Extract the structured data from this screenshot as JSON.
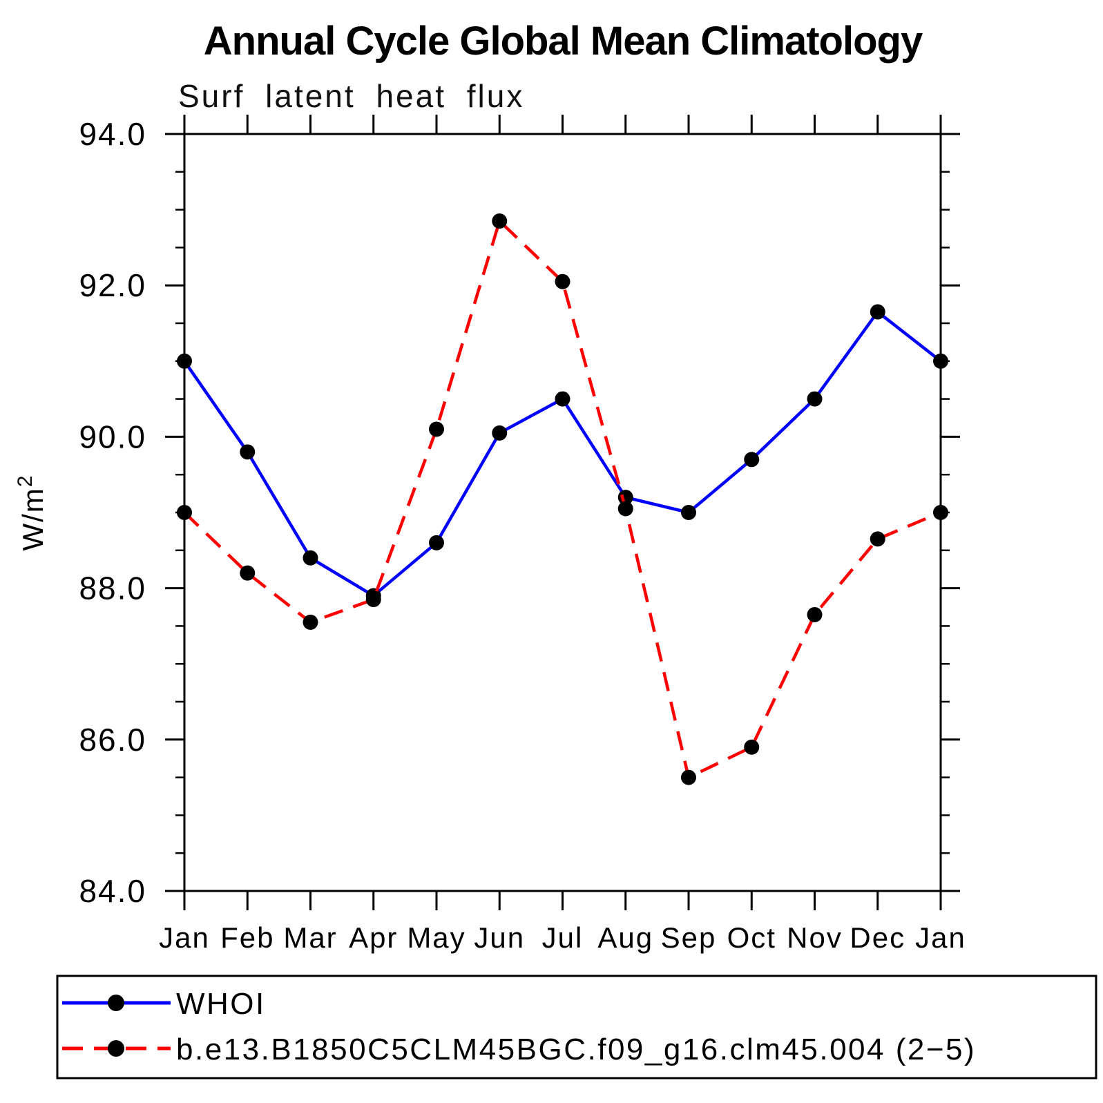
{
  "chart_data": {
    "type": "line",
    "title": "Annual Cycle Global Mean Climatology",
    "subtitle": "Surf latent heat flux",
    "ylabel": "W/m",
    "ylabel_superscript": "2",
    "categories": [
      "Jan",
      "Feb",
      "Mar",
      "Apr",
      "May",
      "Jun",
      "Jul",
      "Aug",
      "Sep",
      "Oct",
      "Nov",
      "Dec",
      "Jan"
    ],
    "series": [
      {
        "name": "WHOI",
        "color": "#0000ff",
        "style": "solid",
        "marker": "circle",
        "marker_color": "#000000",
        "values": [
          91.0,
          89.8,
          88.4,
          87.9,
          88.6,
          90.05,
          90.5,
          89.2,
          89.0,
          89.7,
          90.5,
          91.65,
          91.0
        ]
      },
      {
        "name": "b.e13.B1850C5CLM45BGC.f09_g16.clm45.004 (2−5)",
        "color": "#ff0000",
        "style": "dashed",
        "marker": "circle",
        "marker_color": "#000000",
        "values": [
          89.0,
          88.2,
          87.55,
          87.85,
          90.1,
          92.85,
          92.05,
          89.05,
          85.5,
          85.9,
          87.65,
          88.65,
          89.0
        ]
      }
    ],
    "ylim": [
      84.0,
      94.0
    ],
    "ytick_major": 2.0,
    "ytick_minor": 0.5,
    "ytick_label_format": "one_decimal",
    "grid": false,
    "legend_position": "bottom",
    "axis_color": "#000000",
    "background_color": "#ffffff"
  }
}
